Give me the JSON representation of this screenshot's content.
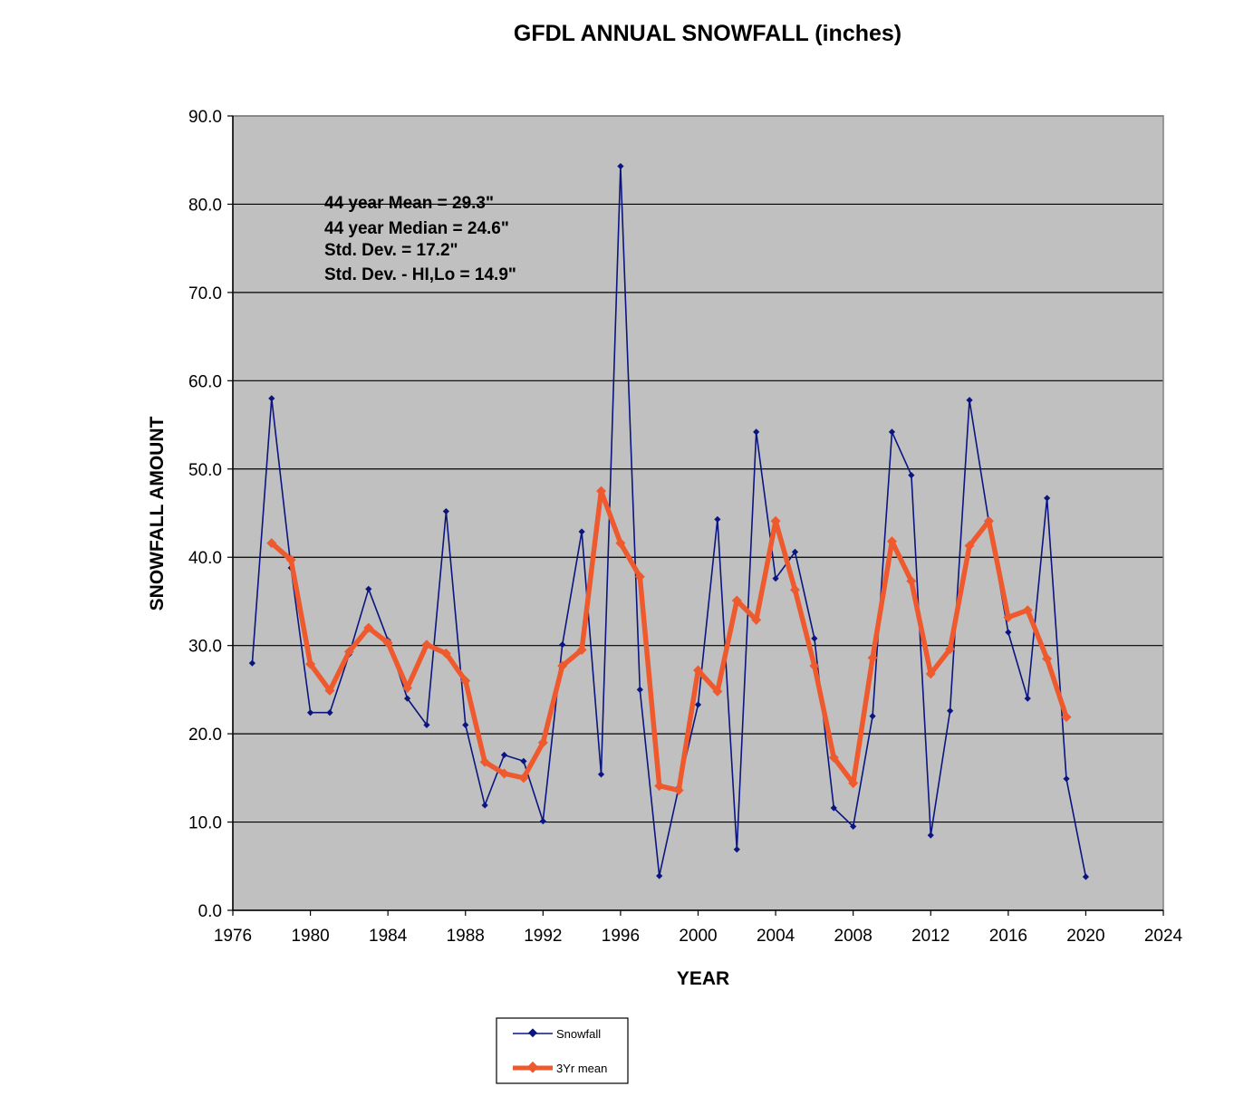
{
  "chart_data": {
    "type": "line",
    "title": "GFDL ANNUAL SNOWFALL  (inches)",
    "xlabel": "YEAR",
    "ylabel": "SNOWFALL AMOUNT",
    "xlim": [
      1976,
      2024
    ],
    "ylim": [
      0,
      90
    ],
    "x_ticks": [
      1976,
      1980,
      1984,
      1988,
      1992,
      1996,
      2000,
      2004,
      2008,
      2012,
      2016,
      2020,
      2024
    ],
    "y_ticks": [
      "0.0",
      "10.0",
      "20.0",
      "30.0",
      "40.0",
      "50.0",
      "60.0",
      "70.0",
      "80.0",
      "90.0"
    ],
    "grid": "horizontal",
    "plot_background": "#c0c0c0",
    "legend_position": "below",
    "annotations": [
      "44 year Mean = 29.3\"",
      "44 year Median = 24.6\"",
      "Std. Dev. = 17.2\"",
      "Std. Dev. - HI,Lo = 14.9\""
    ],
    "series": [
      {
        "name": "Snowfall",
        "color": "#0a1580",
        "x": [
          1977,
          1978,
          1979,
          1980,
          1981,
          1982,
          1983,
          1984,
          1985,
          1986,
          1987,
          1988,
          1989,
          1990,
          1991,
          1992,
          1993,
          1994,
          1995,
          1996,
          1997,
          1998,
          1999,
          2000,
          2001,
          2002,
          2003,
          2004,
          2005,
          2006,
          2007,
          2008,
          2009,
          2010,
          2011,
          2012,
          2013,
          2014,
          2015,
          2016,
          2017,
          2018,
          2019,
          2020
        ],
        "values": [
          28.0,
          58.0,
          38.8,
          22.4,
          22.4,
          29.0,
          36.4,
          30.6,
          24.0,
          21.0,
          45.2,
          21.0,
          11.9,
          17.6,
          16.9,
          10.1,
          30.1,
          42.9,
          15.4,
          84.3,
          25.0,
          3.9,
          13.9,
          23.3,
          44.3,
          6.9,
          54.2,
          37.6,
          40.6,
          30.8,
          11.6,
          9.5,
          22.0,
          54.2,
          49.3,
          8.5,
          22.6,
          57.8,
          44.0,
          31.5,
          24.0,
          46.7,
          14.9,
          3.8
        ]
      },
      {
        "name": "3Yr mean",
        "color": "#ee5a2e",
        "x": [
          1978,
          1979,
          1980,
          1981,
          1982,
          1983,
          1984,
          1985,
          1986,
          1987,
          1988,
          1989,
          1990,
          1991,
          1992,
          1993,
          1994,
          1995,
          1996,
          1997,
          1998,
          1999,
          2000,
          2001,
          2002,
          2003,
          2004,
          2005,
          2006,
          2007,
          2008,
          2009,
          2010,
          2011,
          2012,
          2013,
          2014,
          2015,
          2016,
          2017,
          2018,
          2019
        ],
        "values": [
          41.6,
          39.7,
          27.9,
          24.9,
          29.3,
          32.0,
          30.3,
          25.2,
          30.1,
          29.1,
          26.0,
          16.8,
          15.5,
          15.0,
          19.0,
          27.7,
          29.5,
          47.5,
          41.6,
          37.8,
          14.1,
          13.6,
          27.2,
          24.8,
          35.1,
          32.9,
          44.1,
          36.3,
          27.7,
          17.3,
          14.4,
          28.6,
          41.8,
          37.3,
          26.8,
          29.6,
          41.3,
          44.1,
          33.2,
          34.0,
          28.5,
          21.9
        ]
      }
    ]
  }
}
